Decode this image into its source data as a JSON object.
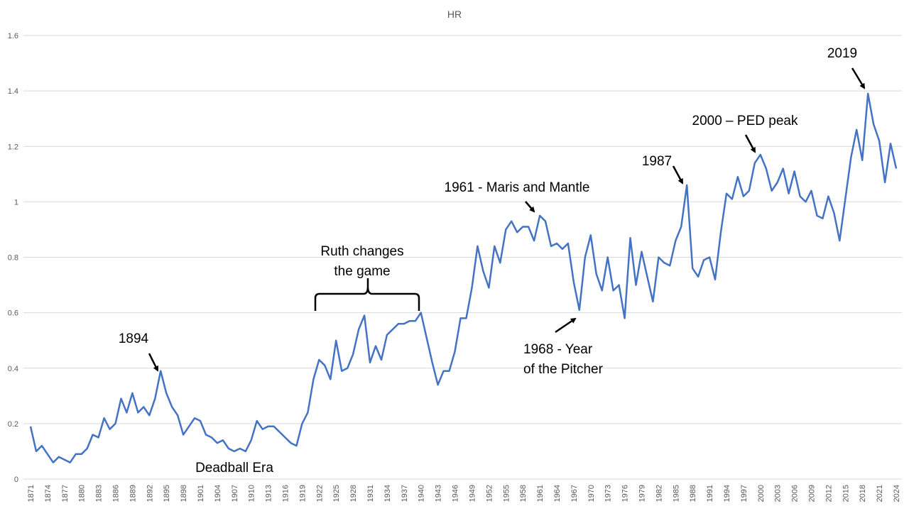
{
  "chart_data": {
    "type": "line",
    "title": "HR",
    "xlabel": "",
    "ylabel": "",
    "ylim": [
      0,
      1.6
    ],
    "yticks": [
      "0",
      "0.2",
      "0.4",
      "0.6",
      "0.8",
      "1",
      "1.2",
      "1.4",
      "1.6"
    ],
    "grid": true,
    "legend": "none",
    "line_color": "#4472C4",
    "x_start": 1871,
    "x_end": 2024,
    "xtick_step": 3,
    "series": [
      {
        "values": [
          0.19,
          0.1,
          0.12,
          0.09,
          0.06,
          0.08,
          0.07,
          0.06,
          0.09,
          0.09,
          0.11,
          0.16,
          0.15,
          0.22,
          0.18,
          0.2,
          0.29,
          0.24,
          0.31,
          0.24,
          0.26,
          0.23,
          0.29,
          0.39,
          0.31,
          0.26,
          0.23,
          0.16,
          0.19,
          0.22,
          0.21,
          0.16,
          0.15,
          0.13,
          0.14,
          0.11,
          0.1,
          0.11,
          0.1,
          0.14,
          0.21,
          0.18,
          0.19,
          0.19,
          0.17,
          0.15,
          0.13,
          0.12,
          0.2,
          0.24,
          0.36,
          0.43,
          0.41,
          0.36,
          0.5,
          0.39,
          0.4,
          0.45,
          0.54,
          0.59,
          0.42,
          0.48,
          0.43,
          0.52,
          0.54,
          0.56,
          0.56,
          0.57,
          0.57,
          0.6,
          0.51,
          0.42,
          0.34,
          0.39,
          0.39,
          0.46,
          0.58,
          0.58,
          0.69,
          0.84,
          0.75,
          0.69,
          0.84,
          0.78,
          0.9,
          0.93,
          0.89,
          0.91,
          0.91,
          0.86,
          0.95,
          0.93,
          0.84,
          0.85,
          0.83,
          0.85,
          0.71,
          0.61,
          0.8,
          0.88,
          0.74,
          0.68,
          0.8,
          0.68,
          0.7,
          0.58,
          0.87,
          0.7,
          0.82,
          0.73,
          0.64,
          0.8,
          0.78,
          0.77,
          0.86,
          0.91,
          1.06,
          0.76,
          0.73,
          0.79,
          0.8,
          0.72,
          0.89,
          1.03,
          1.01,
          1.09,
          1.02,
          1.04,
          1.14,
          1.17,
          1.12,
          1.04,
          1.07,
          1.12,
          1.03,
          1.11,
          1.02,
          1.0,
          1.04,
          0.95,
          0.94,
          1.02,
          0.96,
          0.86,
          1.01,
          1.16,
          1.26,
          1.15,
          1.39,
          1.28,
          1.22,
          1.07,
          1.21,
          1.12
        ]
      }
    ],
    "annotations": {
      "a1894": "1894",
      "deadball": "Deadball Era",
      "ruth_line1": "Ruth changes",
      "ruth_line2": "the game",
      "a1961": "1961 - Maris and Mantle",
      "a1968_line1": "1968 - Year",
      "a1968_line2": "of the Pitcher",
      "a1987": "1987",
      "a2000": "2000 – PED peak",
      "a2019": "2019"
    }
  }
}
